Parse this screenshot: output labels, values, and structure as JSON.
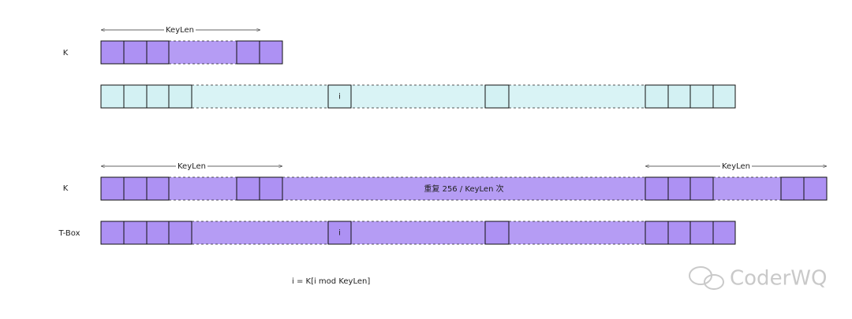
{
  "labels": {
    "keylen_top": "KeyLen",
    "k_top": "K",
    "keylen_left": "KeyLen",
    "keylen_right": "KeyLen",
    "k_bottom": "K",
    "tbox": "T-Box"
  },
  "cells": {
    "index_top": "i",
    "index_bottom": "i"
  },
  "repeat_note": "重复 256 / KeyLen 次",
  "formula": "i = K[i mod KeyLen]",
  "watermark": "CoderWQ"
}
